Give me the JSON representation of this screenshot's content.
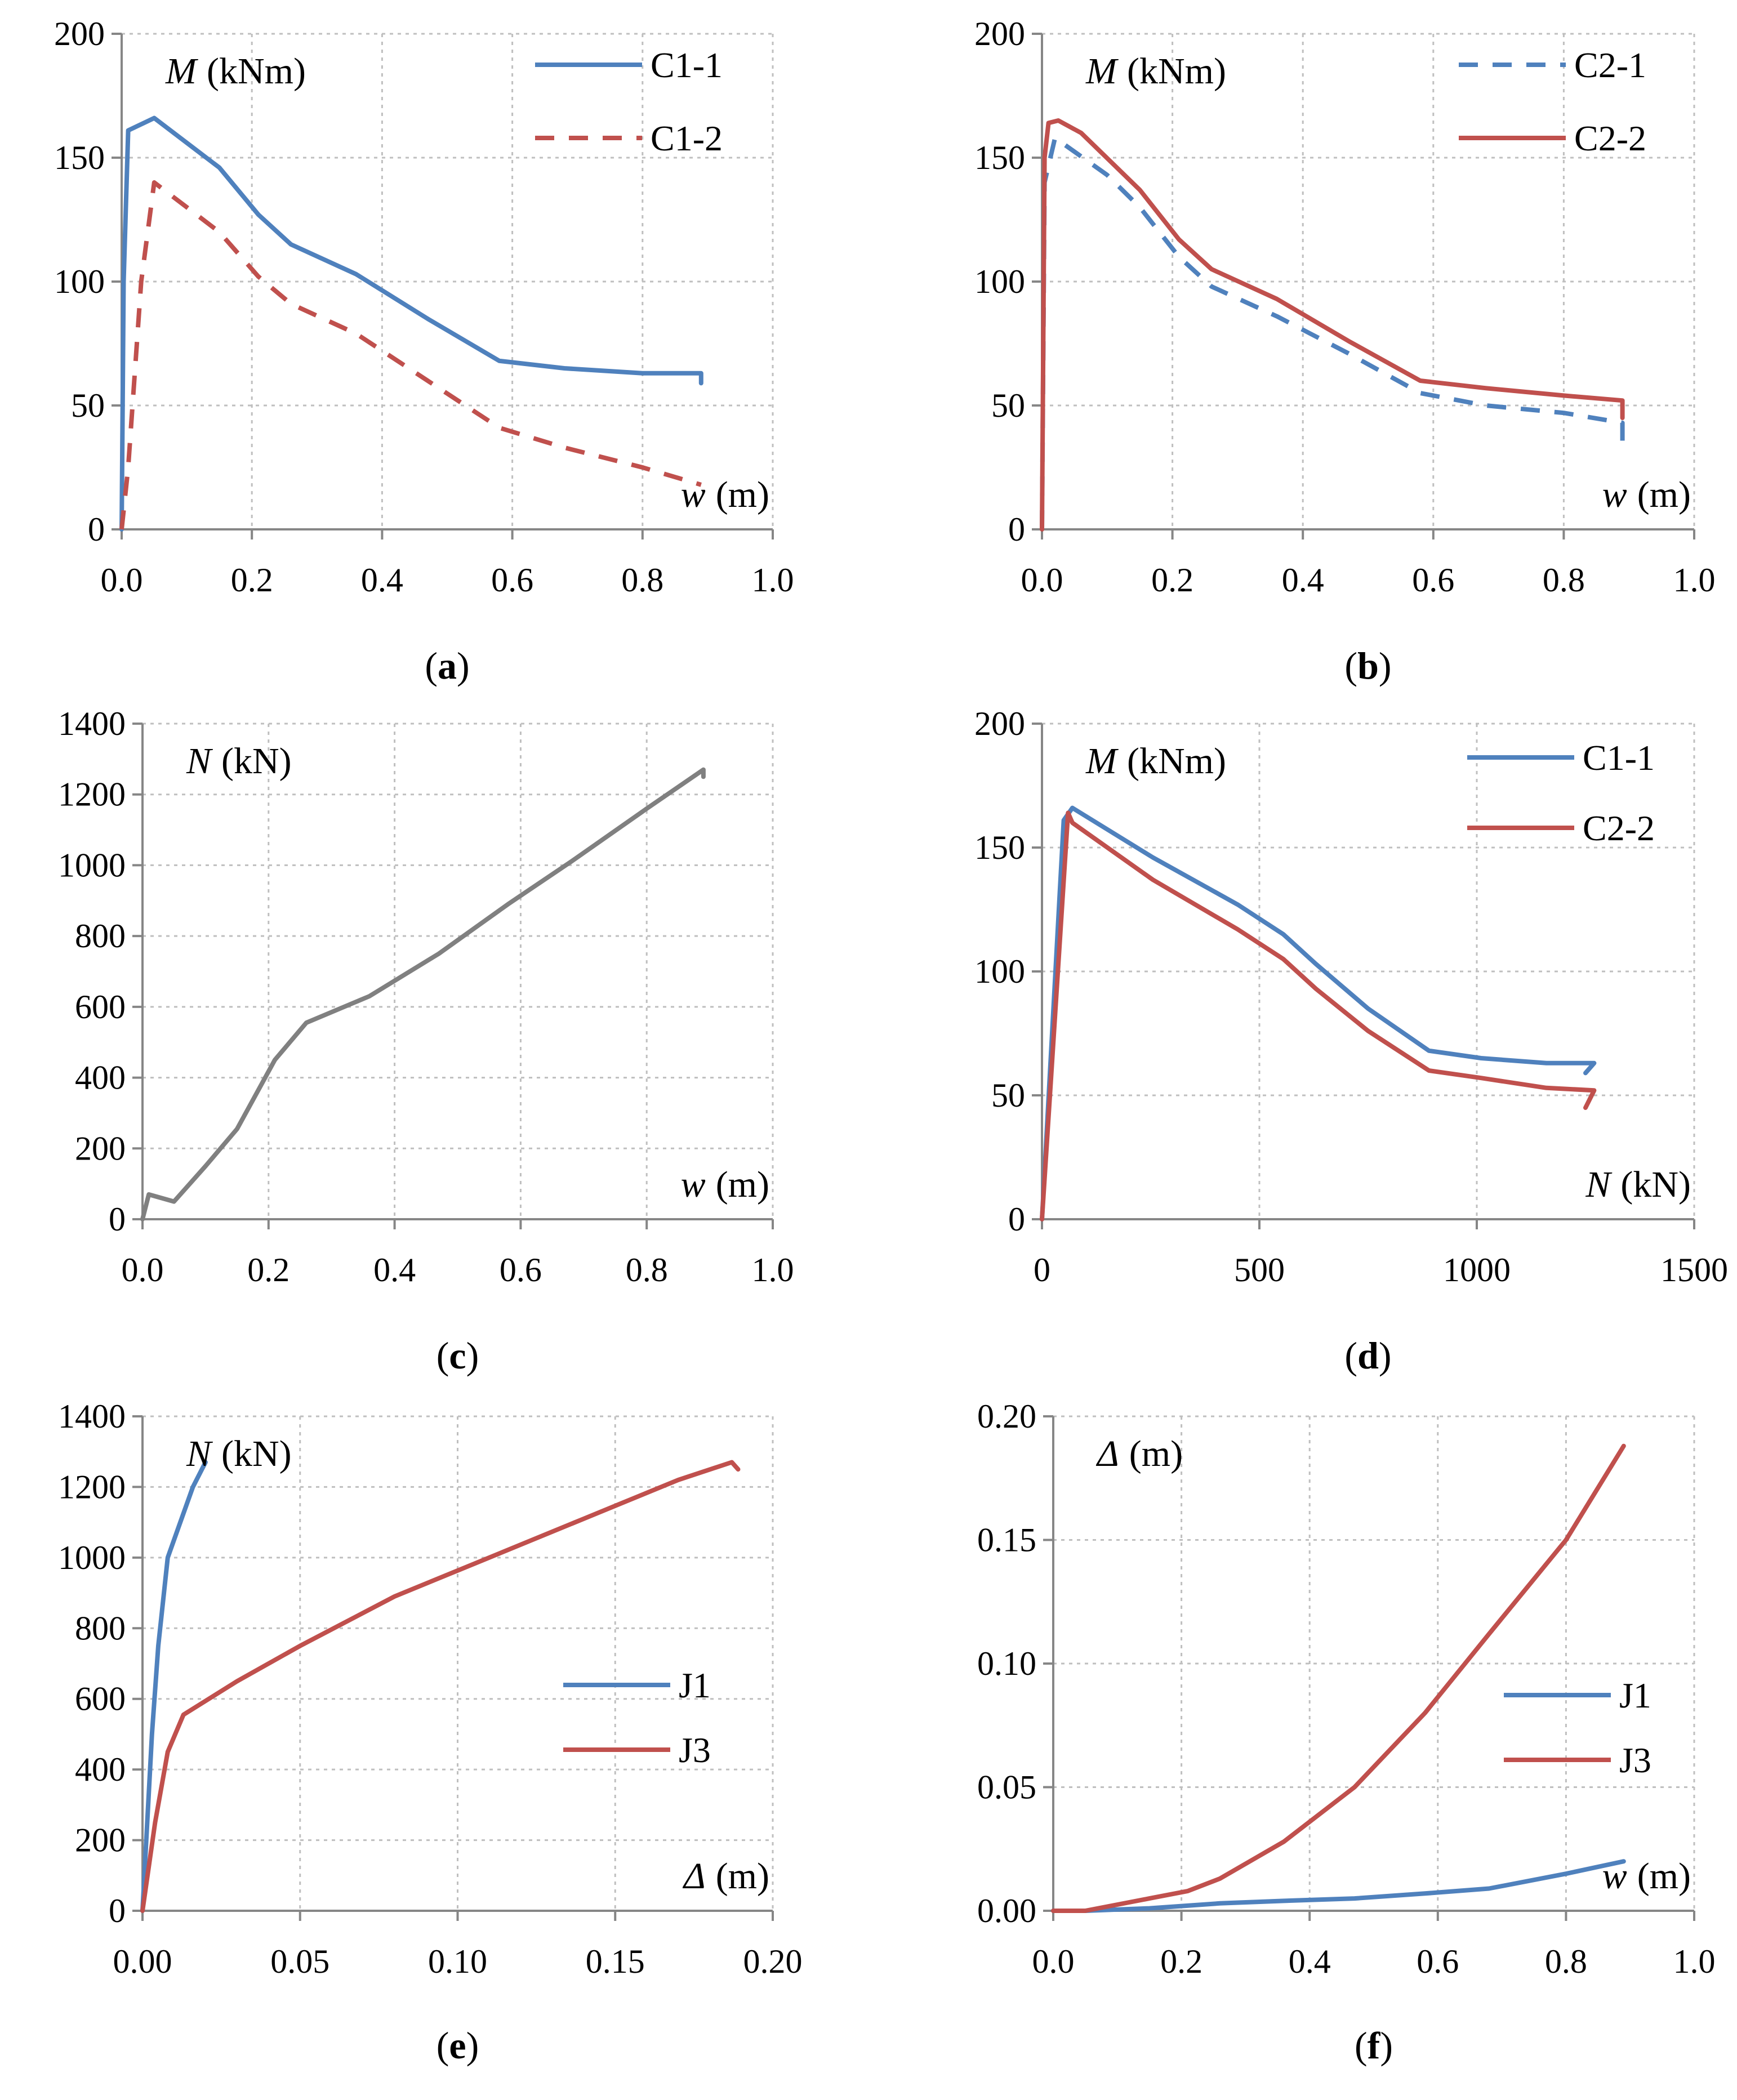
{
  "colors": {
    "blue": "#4f81bd",
    "red": "#c0504d",
    "gray": "#808080",
    "grid": "#bfbfbf",
    "axis": "#868686"
  },
  "chart_data": [
    {
      "id": "a",
      "type": "line",
      "caption_letter": "a",
      "xlim": [
        0,
        1.0
      ],
      "ylim": [
        0,
        200
      ],
      "xticks": [
        "0.0",
        "0.2",
        "0.4",
        "0.6",
        "0.8",
        "1.0"
      ],
      "xtick_values": [
        0,
        0.2,
        0.4,
        0.6,
        0.8,
        1.0
      ],
      "yticks": [
        "0",
        "50",
        "100",
        "150",
        "200"
      ],
      "ytick_values": [
        0,
        50,
        100,
        150,
        200
      ],
      "xlabel": {
        "var": "w",
        "unit": "(m)"
      },
      "ylabel": {
        "var": "M",
        "unit": "(kNm)"
      },
      "legend_position": "top-right",
      "series": [
        {
          "name": "C1-1",
          "color": "blue",
          "dash": "solid",
          "x": [
            0,
            0.003,
            0.01,
            0.05,
            0.15,
            0.21,
            0.26,
            0.36,
            0.47,
            0.58,
            0.68,
            0.8,
            0.89,
            0.89
          ],
          "y": [
            0,
            100,
            161,
            166,
            146,
            127,
            115,
            103,
            85,
            68,
            65,
            63,
            63,
            59
          ]
        },
        {
          "name": "C1-2",
          "color": "red",
          "dash": "dashed",
          "x": [
            0,
            0.01,
            0.03,
            0.05,
            0.15,
            0.21,
            0.26,
            0.36,
            0.47,
            0.58,
            0.68,
            0.8,
            0.89
          ],
          "y": [
            0,
            25,
            100,
            140,
            120,
            102,
            91,
            79,
            60,
            41,
            33,
            25,
            18
          ]
        }
      ]
    },
    {
      "id": "b",
      "type": "line",
      "caption_letter": "b",
      "xlim": [
        0,
        1.0
      ],
      "ylim": [
        0,
        200
      ],
      "xticks": [
        "0.0",
        "0.2",
        "0.4",
        "0.6",
        "0.8",
        "1.0"
      ],
      "xtick_values": [
        0,
        0.2,
        0.4,
        0.6,
        0.8,
        1.0
      ],
      "yticks": [
        "0",
        "50",
        "100",
        "150",
        "200"
      ],
      "ytick_values": [
        0,
        50,
        100,
        150,
        200
      ],
      "xlabel": {
        "var": "w",
        "unit": "(m)"
      },
      "ylabel": {
        "var": "M",
        "unit": "(kNm)"
      },
      "legend_position": "top-right",
      "series": [
        {
          "name": "C2-1",
          "color": "blue",
          "dash": "dashed",
          "x": [
            0,
            0.004,
            0.02,
            0.1,
            0.15,
            0.21,
            0.26,
            0.36,
            0.47,
            0.58,
            0.68,
            0.8,
            0.89,
            0.89
          ],
          "y": [
            0,
            140,
            158,
            143,
            130,
            110,
            98,
            86,
            71,
            55,
            50,
            47,
            43,
            35
          ]
        },
        {
          "name": "C2-2",
          "color": "red",
          "dash": "solid",
          "x": [
            0,
            0.004,
            0.01,
            0.025,
            0.06,
            0.15,
            0.21,
            0.26,
            0.36,
            0.47,
            0.58,
            0.68,
            0.8,
            0.89,
            0.89
          ],
          "y": [
            0,
            150,
            164,
            165,
            160,
            137,
            117,
            105,
            93,
            76,
            60,
            57,
            54,
            52,
            45
          ]
        }
      ]
    },
    {
      "id": "c",
      "type": "line",
      "caption_letter": "c",
      "xlim": [
        0,
        1.0
      ],
      "ylim": [
        0,
        1400
      ],
      "xticks": [
        "0.0",
        "0.2",
        "0.4",
        "0.6",
        "0.8",
        "1.0"
      ],
      "xtick_values": [
        0,
        0.2,
        0.4,
        0.6,
        0.8,
        1.0
      ],
      "yticks": [
        "0",
        "200",
        "400",
        "600",
        "800",
        "1000",
        "1200",
        "1400"
      ],
      "ytick_values": [
        0,
        200,
        400,
        600,
        800,
        1000,
        1200,
        1400
      ],
      "xlabel": {
        "var": "w",
        "unit": "(m)"
      },
      "ylabel": {
        "var": "N",
        "unit": "(kN)"
      },
      "legend_position": "none",
      "series": [
        {
          "name": "N",
          "color": "gray",
          "dash": "solid",
          "x": [
            0,
            0.01,
            0.05,
            0.1,
            0.15,
            0.21,
            0.26,
            0.36,
            0.47,
            0.58,
            0.68,
            0.8,
            0.89,
            0.89
          ],
          "y": [
            0,
            70,
            50,
            150,
            255,
            450,
            555,
            630,
            750,
            890,
            1010,
            1160,
            1270,
            1250
          ]
        }
      ]
    },
    {
      "id": "d",
      "type": "line",
      "caption_letter": "d",
      "xlim": [
        0,
        1500
      ],
      "ylim": [
        0,
        200
      ],
      "xticks": [
        "0",
        "500",
        "1000",
        "1500"
      ],
      "xtick_values": [
        0,
        500,
        1000,
        1500
      ],
      "yticks": [
        "0",
        "50",
        "100",
        "150",
        "200"
      ],
      "ytick_values": [
        0,
        50,
        100,
        150,
        200
      ],
      "xlabel": {
        "var": "N",
        "unit": "(kN)"
      },
      "ylabel": {
        "var": "M",
        "unit": "(kNm)"
      },
      "legend_position": "top-right",
      "series": [
        {
          "name": "C1-1",
          "color": "blue",
          "dash": "solid",
          "x": [
            0,
            50,
            70,
            255,
            450,
            555,
            630,
            750,
            890,
            1010,
            1160,
            1270,
            1250
          ],
          "y": [
            0,
            161,
            166,
            146,
            127,
            115,
            103,
            85,
            68,
            65,
            63,
            63,
            59
          ]
        },
        {
          "name": "C2-2",
          "color": "red",
          "dash": "solid",
          "x": [
            0,
            60,
            70,
            255,
            450,
            555,
            630,
            750,
            890,
            1010,
            1160,
            1270,
            1250
          ],
          "y": [
            0,
            164,
            160,
            137,
            117,
            105,
            93,
            76,
            60,
            57,
            53,
            52,
            45
          ]
        }
      ]
    },
    {
      "id": "e",
      "type": "line",
      "caption_letter": "e",
      "xlim": [
        0,
        0.2
      ],
      "ylim": [
        0,
        1400
      ],
      "xticks": [
        "0.00",
        "0.05",
        "0.10",
        "0.15",
        "0.20"
      ],
      "xtick_values": [
        0,
        0.05,
        0.1,
        0.15,
        0.2
      ],
      "yticks": [
        "0",
        "200",
        "400",
        "600",
        "800",
        "1000",
        "1200",
        "1400"
      ],
      "ytick_values": [
        0,
        200,
        400,
        600,
        800,
        1000,
        1200,
        1400
      ],
      "xlabel": {
        "var": "Δ",
        "unit": "(m)"
      },
      "ylabel": {
        "var": "N",
        "unit": "(kN)"
      },
      "legend_position": "center-right",
      "series": [
        {
          "name": "J1",
          "color": "blue",
          "dash": "solid",
          "x": [
            0,
            0.003,
            0.005,
            0.008,
            0.012,
            0.016,
            0.02
          ],
          "y": [
            0,
            500,
            750,
            1000,
            1100,
            1200,
            1270
          ]
        },
        {
          "name": "J3",
          "color": "red",
          "dash": "solid",
          "x": [
            0,
            0.004,
            0.008,
            0.013,
            0.03,
            0.05,
            0.08,
            0.11,
            0.14,
            0.17,
            0.187,
            0.189
          ],
          "y": [
            0,
            250,
            450,
            555,
            650,
            750,
            890,
            1000,
            1110,
            1220,
            1270,
            1250
          ]
        }
      ]
    },
    {
      "id": "f",
      "type": "line",
      "caption_letter": "f",
      "xlim": [
        0,
        1.0
      ],
      "ylim": [
        0,
        0.2
      ],
      "xticks": [
        "0.0",
        "0.2",
        "0.4",
        "0.6",
        "0.8",
        "1.0"
      ],
      "xtick_values": [
        0,
        0.2,
        0.4,
        0.6,
        0.8,
        1.0
      ],
      "yticks": [
        "0.00",
        "0.05",
        "0.10",
        "0.15",
        "0.20"
      ],
      "ytick_values": [
        0,
        0.05,
        0.1,
        0.15,
        0.2
      ],
      "xlabel": {
        "var": "w",
        "unit": "(m)"
      },
      "ylabel": {
        "var": "Δ",
        "unit": "(m)"
      },
      "legend_position": "center-right",
      "series": [
        {
          "name": "J1",
          "color": "blue",
          "dash": "solid",
          "x": [
            0,
            0.05,
            0.15,
            0.26,
            0.36,
            0.47,
            0.58,
            0.68,
            0.8,
            0.89
          ],
          "y": [
            0,
            0,
            0.001,
            0.003,
            0.004,
            0.005,
            0.007,
            0.009,
            0.015,
            0.02
          ]
        },
        {
          "name": "J3",
          "color": "red",
          "dash": "solid",
          "x": [
            0,
            0.05,
            0.15,
            0.21,
            0.26,
            0.36,
            0.47,
            0.58,
            0.68,
            0.8,
            0.89
          ],
          "y": [
            0,
            0,
            0.005,
            0.008,
            0.013,
            0.028,
            0.05,
            0.08,
            0.112,
            0.15,
            0.188
          ]
        }
      ]
    }
  ]
}
